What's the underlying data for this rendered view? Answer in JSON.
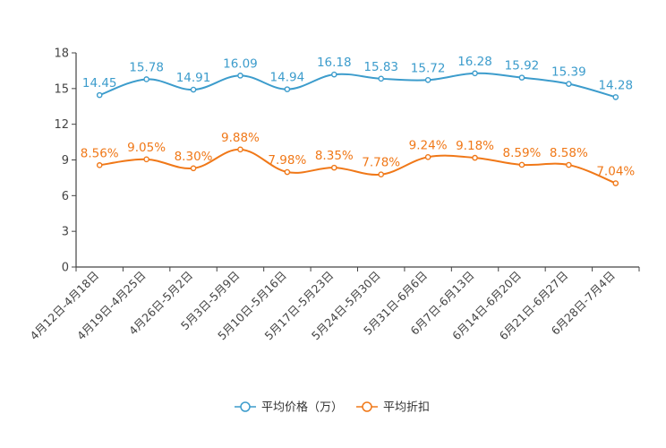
{
  "chart_data": {
    "type": "line",
    "categories": [
      "4月12日-4月18日",
      "4月19日-4月25日",
      "4月26日-5月2日",
      "5月3日-5月9日",
      "5月10日-5月16日",
      "5月17日-5月23日",
      "5月24日-5月30日",
      "5月31日-6月6日",
      "6月7日-6月13日",
      "6月14日-6月20日",
      "6月21日-6月27日",
      "6月28日-7月4日"
    ],
    "ylim": [
      0,
      18
    ],
    "yticks": [
      0,
      3,
      6,
      9,
      12,
      15,
      18
    ],
    "series": [
      {
        "name": "平均价格（万）",
        "color": "#3c9ccc",
        "values": [
          14.45,
          15.78,
          14.91,
          16.09,
          14.94,
          16.18,
          15.83,
          15.72,
          16.28,
          15.92,
          15.39,
          14.28
        ],
        "labels": [
          "14.45",
          "15.78",
          "14.91",
          "16.09",
          "14.94",
          "16.18",
          "15.83",
          "15.72",
          "16.28",
          "15.92",
          "15.39",
          "14.28"
        ]
      },
      {
        "name": "平均折扣",
        "color": "#f07818",
        "values": [
          8.56,
          9.05,
          8.3,
          9.88,
          7.98,
          8.35,
          7.78,
          9.24,
          9.18,
          8.59,
          8.58,
          7.04
        ],
        "labels": [
          "8.56%",
          "9.05%",
          "8.30%",
          "9.88%",
          "7.98%",
          "8.35%",
          "7.78%",
          "9.24%",
          "9.18%",
          "8.59%",
          "8.58%",
          "7.04%"
        ]
      }
    ]
  }
}
